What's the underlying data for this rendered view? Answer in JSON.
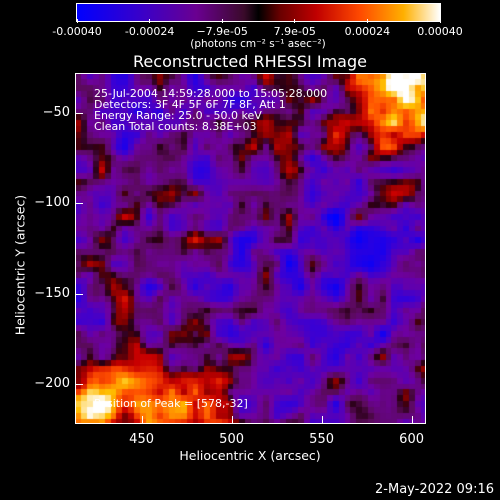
{
  "colorbar": {
    "tick_labels": [
      "-0.00040",
      "-0.00024",
      "−7.9e-05",
      "7.9e-05",
      "0.00024",
      "0.00040"
    ],
    "units": "(photons cm⁻² s⁻¹ asec⁻²)"
  },
  "title": "Reconstructed RHESSI Image",
  "annotations": {
    "time_range": "25-Jul-2004 14:59:28.000 to 15:05:28.000",
    "detectors": "Detectors: 3F 4F 5F 6F 7F 8F, Att 1",
    "energy_range": "Energy Range: 25.0 - 50.0 keV",
    "algorithm": "Clean    Total counts: 8.38E+03",
    "peak": "Position of Peak = [578,-32]"
  },
  "footer_timestamp": "2-May-2022 09:16",
  "chart_data": {
    "type": "heatmap",
    "title": "Reconstructed RHESSI Image",
    "xlabel": "Heliocentric X (arcsec)",
    "ylabel": "Heliocentric Y (arcsec)",
    "x_ticks": [
      450,
      500,
      550,
      600
    ],
    "y_ticks": [
      -50,
      -100,
      -150,
      -200
    ],
    "xlim": [
      413,
      608
    ],
    "ylim": [
      -222,
      -28
    ],
    "color_range": [
      -0.0004,
      0.0004
    ],
    "colormap": "blue-purple-black-red-yellow-white",
    "peak": [
      578,
      -32
    ]
  }
}
